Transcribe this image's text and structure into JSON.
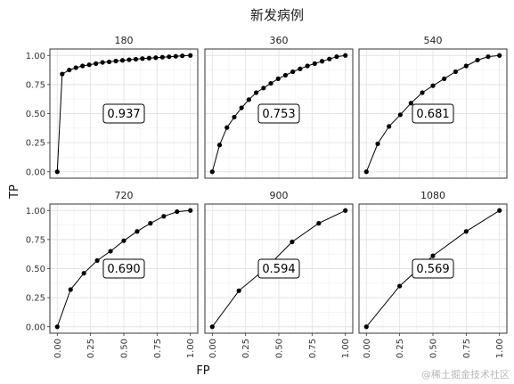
{
  "chart_data": {
    "type": "line",
    "title": "新发病例",
    "xlabel": "FP",
    "ylabel": "TP",
    "xlim": [
      0,
      1
    ],
    "ylim": [
      0,
      1
    ],
    "x_ticks": [
      "0.00",
      "0.25",
      "0.50",
      "0.75",
      "1.00"
    ],
    "y_ticks": [
      "0.00",
      "0.25",
      "0.50",
      "0.75",
      "1.00"
    ],
    "grid": true,
    "panels": [
      {
        "title": "180",
        "label": "0.937",
        "x": [
          0,
          0.037,
          0.09,
          0.14,
          0.19,
          0.24,
          0.29,
          0.34,
          0.39,
          0.44,
          0.49,
          0.54,
          0.59,
          0.64,
          0.69,
          0.74,
          0.79,
          0.84,
          0.89,
          0.94,
          1.0
        ],
        "y": [
          0,
          0.84,
          0.875,
          0.895,
          0.91,
          0.92,
          0.93,
          0.94,
          0.945,
          0.952,
          0.958,
          0.963,
          0.968,
          0.973,
          0.977,
          0.981,
          0.985,
          0.989,
          0.993,
          0.997,
          1.0
        ]
      },
      {
        "title": "360",
        "label": "0.753",
        "x": [
          0,
          0.055,
          0.11,
          0.165,
          0.22,
          0.275,
          0.33,
          0.385,
          0.44,
          0.495,
          0.55,
          0.605,
          0.66,
          0.715,
          0.77,
          0.825,
          0.88,
          0.935,
          1.0
        ],
        "y": [
          0,
          0.23,
          0.38,
          0.47,
          0.55,
          0.62,
          0.68,
          0.72,
          0.76,
          0.8,
          0.83,
          0.86,
          0.885,
          0.91,
          0.93,
          0.95,
          0.97,
          0.99,
          1.0
        ]
      },
      {
        "title": "540",
        "label": "0.681",
        "x": [
          0,
          0.085,
          0.17,
          0.255,
          0.335,
          0.42,
          0.5,
          0.585,
          0.67,
          0.75,
          0.835,
          0.915,
          1.0
        ],
        "y": [
          0,
          0.24,
          0.39,
          0.49,
          0.59,
          0.68,
          0.74,
          0.8,
          0.86,
          0.91,
          0.96,
          0.99,
          1.0
        ]
      },
      {
        "title": "720",
        "label": "0.690",
        "x": [
          0,
          0.1,
          0.2,
          0.3,
          0.4,
          0.5,
          0.6,
          0.7,
          0.8,
          0.9,
          1.0
        ],
        "y": [
          0,
          0.32,
          0.46,
          0.57,
          0.65,
          0.74,
          0.82,
          0.89,
          0.95,
          0.99,
          1.0
        ]
      },
      {
        "title": "900",
        "label": "0.594",
        "x": [
          0,
          0.2,
          0.4,
          0.6,
          0.8,
          1.0
        ],
        "y": [
          0,
          0.31,
          0.5,
          0.73,
          0.89,
          1.0
        ]
      },
      {
        "title": "1080",
        "label": "0.569",
        "x": [
          0,
          0.25,
          0.5,
          0.75,
          1.0
        ],
        "y": [
          0,
          0.35,
          0.61,
          0.82,
          1.0
        ]
      }
    ]
  },
  "watermark": "@稀土掘金技术社区"
}
